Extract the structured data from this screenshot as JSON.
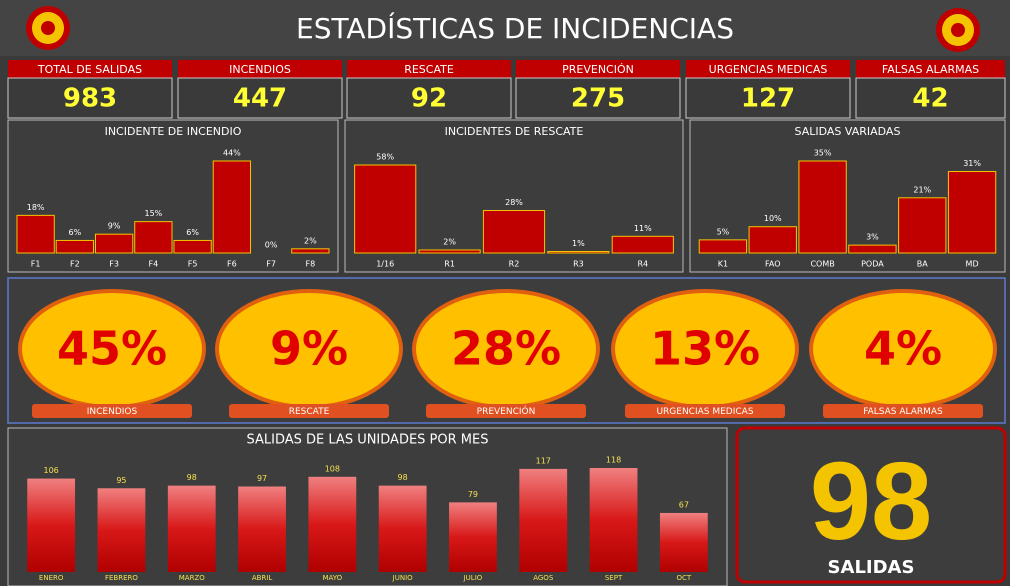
{
  "header": {
    "title": "ESTADÍSTICAS DE INCIDENCIAS"
  },
  "kpis": [
    {
      "label": "TOTAL DE SALIDAS",
      "value": 983
    },
    {
      "label": "INCENDIOS",
      "value": 447
    },
    {
      "label": "RESCATE",
      "value": 92
    },
    {
      "label": "PREVENCIÓN",
      "value": 275
    },
    {
      "label": "URGENCIAS MEDICAS",
      "value": 127
    },
    {
      "label": "FALSAS ALARMAS",
      "value": 42
    }
  ],
  "percentages": [
    {
      "value": "45%",
      "label": "INCENDIOS"
    },
    {
      "value": "9%",
      "label": "RESCATE"
    },
    {
      "value": "28%",
      "label": "PREVENCIÓN"
    },
    {
      "value": "13%",
      "label": "URGENCIAS MEDICAS"
    },
    {
      "value": "4%",
      "label": "FALSAS ALARMAS"
    }
  ],
  "total": {
    "value": 98,
    "label": "SALIDAS"
  },
  "chart_data": [
    {
      "type": "bar",
      "title": "INCIDENTE DE INCENDIO",
      "categories": [
        "F1",
        "F2",
        "F3",
        "F4",
        "F5",
        "F6",
        "F7",
        "F8"
      ],
      "values": [
        18,
        6,
        9,
        15,
        6,
        44,
        0,
        2
      ],
      "value_labels": [
        "18%",
        "6%",
        "9%",
        "15%",
        "6%",
        "44%",
        "0%",
        "2%"
      ],
      "color": "#c00000"
    },
    {
      "type": "bar",
      "title": "INCIDENTES DE RESCATE",
      "categories": [
        "1/16",
        "R1",
        "R2",
        "R3",
        "R4"
      ],
      "values": [
        58,
        2,
        28,
        1,
        11
      ],
      "value_labels": [
        "58%",
        "2%",
        "28%",
        "1%",
        "11%"
      ],
      "color": "#c00000"
    },
    {
      "type": "bar",
      "title": "SALIDAS VARIADAS",
      "categories": [
        "K1",
        "FAO",
        "COMB",
        "PODA",
        "BA",
        "MD"
      ],
      "values": [
        5,
        10,
        35,
        3,
        21,
        31
      ],
      "value_labels": [
        "5%",
        "10%",
        "35%",
        "3%",
        "21%",
        "31%"
      ],
      "color": "#c00000"
    },
    {
      "type": "bar",
      "title": "SALIDAS DE LAS UNIDADES POR MES",
      "categories": [
        "ENERO",
        "FEBRERO",
        "MARZO",
        "ABRIL",
        "MAYO",
        "JUNIO",
        "JULIO",
        "AGOS",
        "SEPT",
        "OCT"
      ],
      "values": [
        106,
        95,
        98,
        97,
        108,
        98,
        79,
        117,
        118,
        67
      ],
      "color": "#d01010"
    }
  ]
}
